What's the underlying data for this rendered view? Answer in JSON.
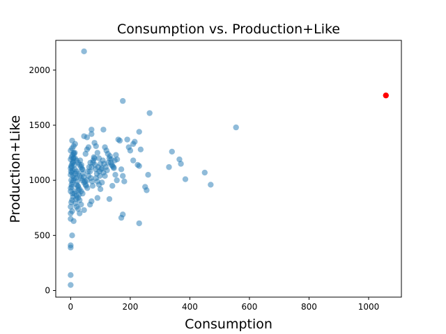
{
  "chart_data": {
    "type": "scatter",
    "title": "Consumption vs. Production+Like",
    "xlabel": "Consumption",
    "ylabel": "Production+Like",
    "xlim": [
      -50,
      1110
    ],
    "ylim": [
      -60,
      2270
    ],
    "xticks": [
      0,
      200,
      400,
      600,
      800,
      1000
    ],
    "yticks": [
      0,
      500,
      1000,
      1500,
      2000
    ],
    "grid": false,
    "series": [
      {
        "color": "#1f77b4",
        "opacity": 0.5,
        "points": [
          [
            0,
            50
          ],
          [
            0,
            140
          ],
          [
            0,
            390
          ],
          [
            0,
            410
          ],
          [
            5,
            500
          ],
          [
            0,
            650
          ],
          [
            0,
            700
          ],
          [
            5,
            720
          ],
          [
            10,
            630
          ],
          [
            0,
            760
          ],
          [
            2,
            800
          ],
          [
            5,
            820
          ],
          [
            8,
            850
          ],
          [
            12,
            880
          ],
          [
            15,
            900
          ],
          [
            0,
            900
          ],
          [
            0,
            930
          ],
          [
            3,
            960
          ],
          [
            6,
            980
          ],
          [
            9,
            1000
          ],
          [
            12,
            1020
          ],
          [
            0,
            1050
          ],
          [
            4,
            1070
          ],
          [
            7,
            1090
          ],
          [
            0,
            1110
          ],
          [
            2,
            1130
          ],
          [
            5,
            1150
          ],
          [
            8,
            1170
          ],
          [
            0,
            1190
          ],
          [
            3,
            1210
          ],
          [
            6,
            1230
          ],
          [
            10,
            1250
          ],
          [
            0,
            1270
          ],
          [
            5,
            1290
          ],
          [
            10,
            1310
          ],
          [
            15,
            1330
          ],
          [
            5,
            1360
          ],
          [
            15,
            1200
          ],
          [
            20,
            1180
          ],
          [
            25,
            1160
          ],
          [
            30,
            1140
          ],
          [
            35,
            1120
          ],
          [
            40,
            1100
          ],
          [
            20,
            1080
          ],
          [
            25,
            1060
          ],
          [
            30,
            1040
          ],
          [
            35,
            1020
          ],
          [
            40,
            1000
          ],
          [
            45,
            980
          ],
          [
            20,
            960
          ],
          [
            25,
            940
          ],
          [
            30,
            920
          ],
          [
            35,
            900
          ],
          [
            40,
            880
          ],
          [
            20,
            860
          ],
          [
            25,
            840
          ],
          [
            30,
            820
          ],
          [
            35,
            780
          ],
          [
            20,
            760
          ],
          [
            25,
            740
          ],
          [
            45,
            730
          ],
          [
            30,
            700
          ],
          [
            50,
            960
          ],
          [
            55,
            1000
          ],
          [
            60,
            1040
          ],
          [
            65,
            1080
          ],
          [
            70,
            1120
          ],
          [
            75,
            1160
          ],
          [
            80,
            1200
          ],
          [
            50,
            1240
          ],
          [
            55,
            1280
          ],
          [
            60,
            1300
          ],
          [
            65,
            780
          ],
          [
            70,
            810
          ],
          [
            45,
            1400
          ],
          [
            55,
            1390
          ],
          [
            70,
            1420
          ],
          [
            70,
            1460
          ],
          [
            80,
            1340
          ],
          [
            85,
            1310
          ],
          [
            90,
            1250
          ],
          [
            95,
            1200
          ],
          [
            100,
            1150
          ],
          [
            105,
            1110
          ],
          [
            110,
            1070
          ],
          [
            115,
            1040
          ],
          [
            85,
            1020
          ],
          [
            90,
            990
          ],
          [
            95,
            960
          ],
          [
            100,
            920
          ],
          [
            110,
            1460
          ],
          [
            115,
            1300
          ],
          [
            120,
            1270
          ],
          [
            125,
            1240
          ],
          [
            130,
            1200
          ],
          [
            135,
            1160
          ],
          [
            140,
            1130
          ],
          [
            145,
            1110
          ],
          [
            150,
            1050
          ],
          [
            155,
            1000
          ],
          [
            140,
            950
          ],
          [
            130,
            830
          ],
          [
            90,
            840
          ],
          [
            105,
            980
          ],
          [
            160,
            1370
          ],
          [
            165,
            1360
          ],
          [
            170,
            1100
          ],
          [
            175,
            1040
          ],
          [
            180,
            990
          ],
          [
            170,
            660
          ],
          [
            175,
            690
          ],
          [
            175,
            1720
          ],
          [
            190,
            1370
          ],
          [
            195,
            1300
          ],
          [
            200,
            1270
          ],
          [
            210,
            1330
          ],
          [
            210,
            1180
          ],
          [
            215,
            1350
          ],
          [
            225,
            1140
          ],
          [
            230,
            1130
          ],
          [
            230,
            1440
          ],
          [
            235,
            1280
          ],
          [
            230,
            610
          ],
          [
            250,
            940
          ],
          [
            255,
            910
          ],
          [
            260,
            1050
          ],
          [
            265,
            1610
          ],
          [
            330,
            1120
          ],
          [
            340,
            1260
          ],
          [
            365,
            1190
          ],
          [
            370,
            1150
          ],
          [
            385,
            1010
          ],
          [
            450,
            1070
          ],
          [
            470,
            960
          ],
          [
            555,
            1480
          ],
          [
            45,
            2170
          ],
          [
            10,
            1200
          ],
          [
            12,
            1140
          ],
          [
            14,
            1100
          ],
          [
            16,
            1060
          ],
          [
            18,
            1020
          ],
          [
            22,
            990
          ],
          [
            24,
            950
          ],
          [
            26,
            910
          ],
          [
            28,
            870
          ],
          [
            18,
            830
          ],
          [
            16,
            790
          ],
          [
            14,
            1250
          ],
          [
            32,
            1180
          ],
          [
            36,
            1140
          ],
          [
            38,
            1100
          ],
          [
            42,
            1060
          ],
          [
            44,
            1030
          ],
          [
            48,
            990
          ],
          [
            52,
            950
          ],
          [
            56,
            930
          ],
          [
            58,
            1080
          ],
          [
            62,
            1120
          ],
          [
            66,
            1160
          ],
          [
            68,
            1020
          ],
          [
            72,
            990
          ],
          [
            74,
            950
          ],
          [
            76,
            1180
          ],
          [
            78,
            1210
          ],
          [
            82,
            1140
          ],
          [
            84,
            1100
          ],
          [
            88,
            1060
          ],
          [
            92,
            1120
          ],
          [
            96,
            1080
          ],
          [
            98,
            1040
          ],
          [
            102,
            1100
          ],
          [
            108,
            1180
          ],
          [
            112,
            1150
          ],
          [
            118,
            1120
          ],
          [
            122,
            1090
          ],
          [
            126,
            1160
          ],
          [
            132,
            1220
          ],
          [
            136,
            1190
          ],
          [
            138,
            1140
          ],
          [
            144,
            1120
          ],
          [
            148,
            1180
          ],
          [
            152,
            1230
          ],
          [
            156,
            1190
          ],
          [
            2,
            1000
          ],
          [
            4,
            940
          ],
          [
            6,
            880
          ],
          [
            8,
            1040
          ],
          [
            1,
            1080
          ],
          [
            3,
            1120
          ],
          [
            7,
            1160
          ],
          [
            9,
            1200
          ],
          [
            11,
            1240
          ]
        ]
      },
      {
        "color": "#ff0000",
        "opacity": 1,
        "points": [
          [
            1058,
            1770
          ]
        ]
      }
    ]
  }
}
